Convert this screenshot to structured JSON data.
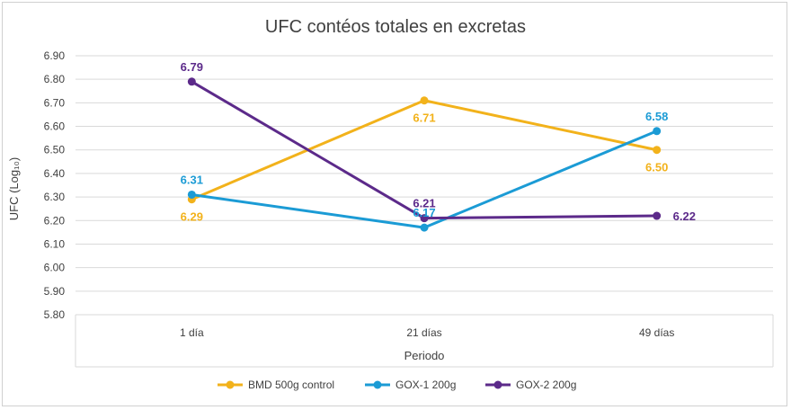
{
  "chart_data": {
    "type": "line",
    "title": "UFC contéos totales en excretas",
    "xlabel": "Periodo",
    "ylabel": "UFC (Log₁₀)",
    "categories": [
      "1 día",
      "21 días",
      "49 días"
    ],
    "ylim": [
      5.8,
      6.9
    ],
    "ytick_step": 0.1,
    "grid": true,
    "legend_position": "bottom",
    "series": [
      {
        "name": "BMD 500g control",
        "color": "#F2B21B",
        "values": [
          6.29,
          6.71,
          6.5
        ],
        "labels": [
          "6.29",
          "6.71",
          "6.50"
        ],
        "label_pos": [
          "below",
          "below",
          "below"
        ]
      },
      {
        "name": "GOX-1 200g",
        "color": "#1B9BD5",
        "values": [
          6.31,
          6.17,
          6.58
        ],
        "labels": [
          "6.31",
          "6.17",
          "6.58"
        ],
        "label_pos": [
          "above",
          "above",
          "above"
        ]
      },
      {
        "name": "GOX-2 200g",
        "color": "#5C2A8A",
        "values": [
          6.79,
          6.21,
          6.22
        ],
        "labels": [
          "6.79",
          "6.21",
          "6.22"
        ],
        "label_pos": [
          "above",
          "above",
          "right"
        ]
      }
    ]
  }
}
